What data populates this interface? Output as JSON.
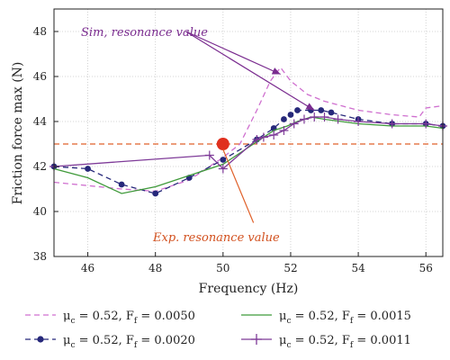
{
  "chart_data": {
    "type": "line",
    "xlabel": "Frequency (Hz)",
    "ylabel": "Friction force max (N)",
    "xlim": [
      45,
      56.5
    ],
    "ylim": [
      38,
      49
    ],
    "xticks": [
      46,
      48,
      50,
      52,
      54,
      56
    ],
    "yticks": [
      38,
      40,
      42,
      44,
      46,
      48
    ],
    "grid": true,
    "legend_position": "bottom",
    "colors": {
      "s1": "#cf6fcf",
      "s2": "#26287a",
      "s3": "#3f9a3a",
      "s4": "#7e3a98",
      "threshold": "#e0612a",
      "exp_point": "#e0301e",
      "sim_annotation": "#7a2c8f"
    },
    "series": [
      {
        "mu": "μ",
        "sub1": "c",
        "mid": " = 0.52, F",
        "sub2": "f",
        "tail": " = 0.0050",
        "style": "dashed",
        "marker": "none",
        "x": [
          45,
          47,
          48,
          49,
          50,
          50.5,
          51,
          51.4,
          51.7,
          52,
          52.5,
          53,
          53.5,
          54,
          55,
          55.8,
          56,
          56.5
        ],
        "y": [
          41.3,
          41.0,
          40.9,
          41.4,
          42.4,
          43.0,
          44.5,
          45.8,
          46.4,
          45.8,
          45.2,
          44.9,
          44.7,
          44.5,
          44.3,
          44.2,
          44.6,
          44.7
        ]
      },
      {
        "mu": "μ",
        "sub1": "c",
        "mid": " = 0.52, F",
        "sub2": "f",
        "tail": " = 0.0020",
        "style": "dashed",
        "marker": "dot",
        "x": [
          45,
          46,
          47,
          48,
          49,
          50,
          51,
          51.5,
          51.8,
          52,
          52.2,
          52.6,
          52.9,
          53.2,
          54,
          55,
          56,
          56.5
        ],
        "y": [
          42.0,
          41.9,
          41.2,
          40.8,
          41.5,
          42.3,
          43.2,
          43.7,
          44.1,
          44.3,
          44.5,
          44.5,
          44.5,
          44.4,
          44.1,
          43.9,
          43.9,
          43.8
        ]
      },
      {
        "mu": "μ",
        "sub1": "c",
        "mid": " = 0.52, F",
        "sub2": "f",
        "tail": " = 0.0015",
        "style": "solid",
        "marker": "none",
        "x": [
          45,
          46,
          47,
          48,
          49,
          50,
          50.5,
          51,
          51.5,
          51.9,
          52.2,
          52.6,
          53,
          53.5,
          54,
          55,
          56,
          56.5
        ],
        "y": [
          41.9,
          41.5,
          40.8,
          41.1,
          41.6,
          42.1,
          42.6,
          43.1,
          43.6,
          43.8,
          44.0,
          44.2,
          44.1,
          44.0,
          43.9,
          43.8,
          43.8,
          43.7
        ]
      },
      {
        "mu": "μ",
        "sub1": "c",
        "mid": " = 0.52, F",
        "sub2": "f",
        "tail": " = 0.0011",
        "style": "solid",
        "marker": "plus",
        "x": [
          45,
          49.6,
          50,
          51,
          51.2,
          51.5,
          51.8,
          52.1,
          52.4,
          52.7,
          53,
          53.4,
          54,
          55,
          56,
          56.5
        ],
        "y": [
          42.0,
          42.5,
          41.9,
          43.2,
          43.3,
          43.4,
          43.6,
          43.9,
          44.1,
          44.2,
          44.2,
          44.1,
          44.0,
          43.9,
          43.9,
          43.8
        ]
      }
    ],
    "threshold": {
      "y": 43.0
    },
    "exp_point": {
      "x": 50.0,
      "y": 43.0
    },
    "annotations": {
      "sim": {
        "text": "Sim, resonance value",
        "anchor": [
          48.9,
          48.0
        ],
        "targets": [
          [
            51.7,
            46.1
          ],
          [
            52.7,
            44.5
          ]
        ]
      },
      "exp": {
        "text": "Exp. resonance value",
        "anchor": [
          50.9,
          39.5
        ]
      }
    }
  }
}
